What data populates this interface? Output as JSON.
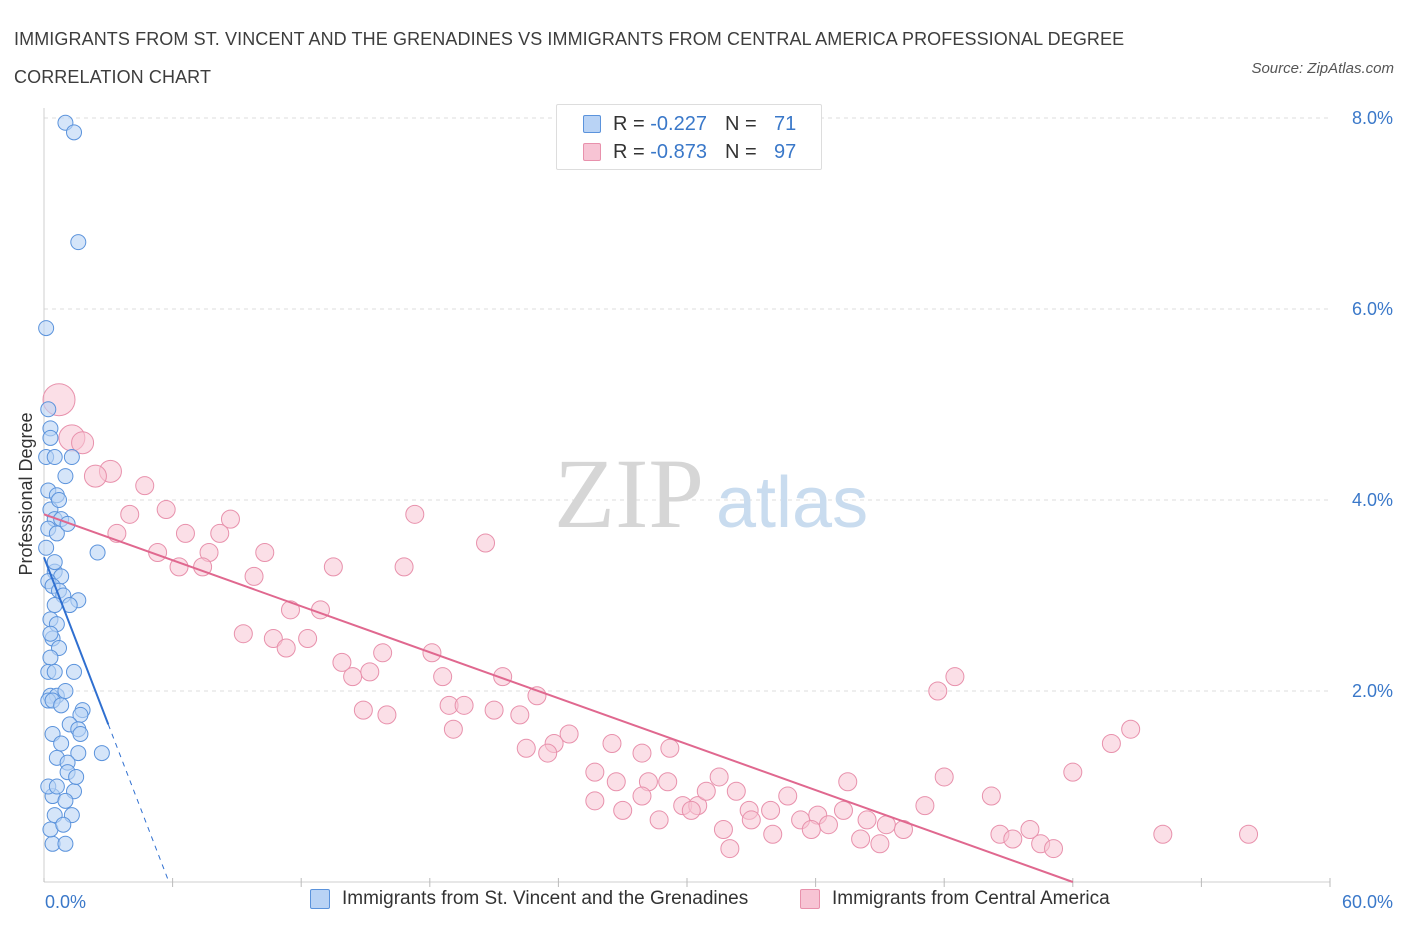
{
  "title_line1": "IMMIGRANTS FROM ST. VINCENT AND THE GRENADINES VS IMMIGRANTS FROM CENTRAL AMERICA PROFESSIONAL DEGREE",
  "title_line2": "CORRELATION CHART",
  "source": "Source: ZipAtlas.com",
  "watermark": {
    "zip": "ZIP",
    "atlas": "atlas"
  },
  "legend": {
    "blue": {
      "r_label": "R = ",
      "r_value": "-0.227",
      "n_label": "N = ",
      "n_value": "71"
    },
    "pink": {
      "r_label": "R = ",
      "r_value": "-0.873",
      "n_label": "N = ",
      "n_value": "97"
    }
  },
  "colors": {
    "blue_fill": "#b9d3f5",
    "blue_stroke": "#5b93dc",
    "blue_line": "#2f6fd0",
    "pink_fill": "#f7c4d4",
    "pink_stroke": "#e891ac",
    "pink_line": "#e0688f",
    "axis_label": "#3a78c9",
    "grid": "#dddddd"
  },
  "chart_data": {
    "type": "scatter",
    "title": "IMMIGRANTS FROM ST. VINCENT AND THE GRENADINES VS IMMIGRANTS FROM CENTRAL AMERICA PROFESSIONAL DEGREE CORRELATION CHART",
    "xlabel": "",
    "ylabel": "Professional Degree",
    "xlim": [
      0,
      60
    ],
    "ylim": [
      0,
      8.0
    ],
    "x_tick_labels": [
      "0.0%",
      "60.0%"
    ],
    "y_ticks": [
      2.0,
      4.0,
      6.0,
      8.0
    ],
    "y_tick_labels": [
      "2.0%",
      "4.0%",
      "6.0%",
      "8.0%"
    ],
    "grid": true,
    "series": [
      {
        "name": "Immigrants from St. Vincent and the Grenadines",
        "R": -0.227,
        "N": 71,
        "trend": {
          "x0": 0.0,
          "y0": 3.4,
          "x1": 3.0,
          "y1": 1.65,
          "dash_to_x": 5.8
        },
        "points": [
          [
            1.0,
            7.95
          ],
          [
            1.4,
            7.85
          ],
          [
            1.6,
            6.7
          ],
          [
            0.1,
            5.8
          ],
          [
            0.2,
            4.95
          ],
          [
            0.3,
            4.75
          ],
          [
            0.3,
            4.65
          ],
          [
            0.1,
            4.45
          ],
          [
            0.5,
            4.45
          ],
          [
            1.3,
            4.45
          ],
          [
            1.0,
            4.25
          ],
          [
            0.2,
            4.1
          ],
          [
            0.6,
            4.05
          ],
          [
            0.3,
            3.9
          ],
          [
            0.5,
            3.8
          ],
          [
            0.8,
            3.8
          ],
          [
            0.2,
            3.7
          ],
          [
            0.6,
            3.65
          ],
          [
            0.1,
            3.5
          ],
          [
            2.5,
            3.45
          ],
          [
            0.5,
            3.25
          ],
          [
            0.8,
            3.2
          ],
          [
            0.2,
            3.15
          ],
          [
            0.4,
            3.1
          ],
          [
            0.7,
            3.05
          ],
          [
            0.9,
            3.0
          ],
          [
            1.6,
            2.95
          ],
          [
            0.5,
            2.9
          ],
          [
            1.2,
            2.9
          ],
          [
            0.3,
            2.75
          ],
          [
            0.6,
            2.7
          ],
          [
            0.4,
            2.55
          ],
          [
            0.7,
            2.45
          ],
          [
            0.3,
            2.35
          ],
          [
            1.4,
            2.2
          ],
          [
            0.2,
            2.2
          ],
          [
            0.5,
            2.2
          ],
          [
            0.3,
            1.95
          ],
          [
            0.6,
            1.95
          ],
          [
            0.2,
            1.9
          ],
          [
            0.4,
            1.9
          ],
          [
            0.8,
            1.85
          ],
          [
            1.8,
            1.8
          ],
          [
            1.7,
            1.75
          ],
          [
            1.2,
            1.65
          ],
          [
            1.6,
            1.6
          ],
          [
            1.7,
            1.55
          ],
          [
            0.4,
            1.55
          ],
          [
            1.6,
            1.35
          ],
          [
            2.7,
            1.35
          ],
          [
            0.6,
            1.3
          ],
          [
            1.1,
            1.25
          ],
          [
            1.1,
            1.15
          ],
          [
            1.4,
            0.95
          ],
          [
            0.4,
            0.9
          ],
          [
            1.0,
            0.85
          ],
          [
            1.3,
            0.7
          ],
          [
            0.5,
            0.7
          ],
          [
            0.4,
            0.4
          ],
          [
            1.0,
            0.4
          ],
          [
            0.3,
            0.55
          ],
          [
            0.9,
            0.6
          ],
          [
            0.2,
            1.0
          ],
          [
            0.6,
            1.0
          ],
          [
            1.5,
            1.1
          ],
          [
            0.8,
            1.45
          ],
          [
            0.3,
            2.6
          ],
          [
            1.0,
            2.0
          ],
          [
            0.5,
            3.35
          ],
          [
            1.1,
            3.75
          ],
          [
            0.7,
            4.0
          ]
        ]
      },
      {
        "name": "Immigrants from Central America",
        "R": -0.873,
        "N": 97,
        "trend": {
          "x0": 0.0,
          "y0": 3.85,
          "x1": 48.0,
          "y1": 0.0
        },
        "points": [
          [
            0.7,
            5.05
          ],
          [
            1.3,
            4.65
          ],
          [
            1.8,
            4.6
          ],
          [
            3.1,
            4.3
          ],
          [
            2.4,
            4.25
          ],
          [
            4.7,
            4.15
          ],
          [
            4.0,
            3.85
          ],
          [
            5.7,
            3.9
          ],
          [
            3.4,
            3.65
          ],
          [
            6.6,
            3.65
          ],
          [
            8.2,
            3.65
          ],
          [
            8.7,
            3.8
          ],
          [
            17.3,
            3.85
          ],
          [
            20.6,
            3.55
          ],
          [
            5.3,
            3.45
          ],
          [
            7.7,
            3.45
          ],
          [
            10.3,
            3.45
          ],
          [
            6.3,
            3.3
          ],
          [
            7.4,
            3.3
          ],
          [
            9.8,
            3.2
          ],
          [
            13.5,
            3.3
          ],
          [
            16.8,
            3.3
          ],
          [
            11.5,
            2.85
          ],
          [
            12.9,
            2.85
          ],
          [
            9.3,
            2.6
          ],
          [
            10.7,
            2.55
          ],
          [
            12.3,
            2.55
          ],
          [
            11.3,
            2.45
          ],
          [
            18.1,
            2.4
          ],
          [
            15.8,
            2.4
          ],
          [
            13.9,
            2.3
          ],
          [
            15.2,
            2.2
          ],
          [
            14.4,
            2.15
          ],
          [
            18.6,
            2.15
          ],
          [
            21.4,
            2.15
          ],
          [
            23.0,
            1.95
          ],
          [
            14.9,
            1.8
          ],
          [
            16.0,
            1.75
          ],
          [
            18.9,
            1.85
          ],
          [
            19.6,
            1.85
          ],
          [
            21.0,
            1.8
          ],
          [
            22.2,
            1.75
          ],
          [
            19.1,
            1.6
          ],
          [
            24.5,
            1.55
          ],
          [
            26.5,
            1.45
          ],
          [
            23.8,
            1.45
          ],
          [
            22.5,
            1.4
          ],
          [
            23.5,
            1.35
          ],
          [
            27.9,
            1.35
          ],
          [
            29.2,
            1.4
          ],
          [
            25.7,
            1.15
          ],
          [
            26.7,
            1.05
          ],
          [
            28.2,
            1.05
          ],
          [
            29.1,
            1.05
          ],
          [
            31.5,
            1.1
          ],
          [
            32.3,
            0.95
          ],
          [
            27.9,
            0.9
          ],
          [
            25.7,
            0.85
          ],
          [
            29.8,
            0.8
          ],
          [
            30.5,
            0.8
          ],
          [
            30.2,
            0.75
          ],
          [
            32.9,
            0.75
          ],
          [
            33.9,
            0.75
          ],
          [
            34.7,
            0.9
          ],
          [
            36.1,
            0.7
          ],
          [
            37.5,
            1.05
          ],
          [
            37.3,
            0.75
          ],
          [
            38.4,
            0.65
          ],
          [
            39.3,
            0.6
          ],
          [
            40.1,
            0.55
          ],
          [
            41.1,
            0.8
          ],
          [
            42.0,
            1.1
          ],
          [
            44.2,
            0.9
          ],
          [
            44.6,
            0.5
          ],
          [
            45.2,
            0.45
          ],
          [
            46.0,
            0.55
          ],
          [
            46.5,
            0.4
          ],
          [
            47.1,
            0.35
          ],
          [
            48.0,
            1.15
          ],
          [
            49.8,
            1.45
          ],
          [
            50.7,
            1.6
          ],
          [
            56.2,
            0.5
          ],
          [
            52.2,
            0.5
          ],
          [
            41.7,
            2.0
          ],
          [
            42.5,
            2.15
          ],
          [
            31.7,
            0.55
          ],
          [
            35.3,
            0.65
          ],
          [
            32.0,
            0.35
          ],
          [
            33.0,
            0.65
          ],
          [
            34.0,
            0.5
          ],
          [
            35.8,
            0.55
          ],
          [
            38.1,
            0.45
          ],
          [
            39.0,
            0.4
          ],
          [
            36.6,
            0.6
          ],
          [
            28.7,
            0.65
          ],
          [
            30.9,
            0.95
          ],
          [
            27.0,
            0.75
          ]
        ]
      }
    ]
  },
  "bottom_legend": {
    "blue_label": "Immigrants from St. Vincent and the Grenadines",
    "pink_label": "Immigrants from Central America"
  }
}
